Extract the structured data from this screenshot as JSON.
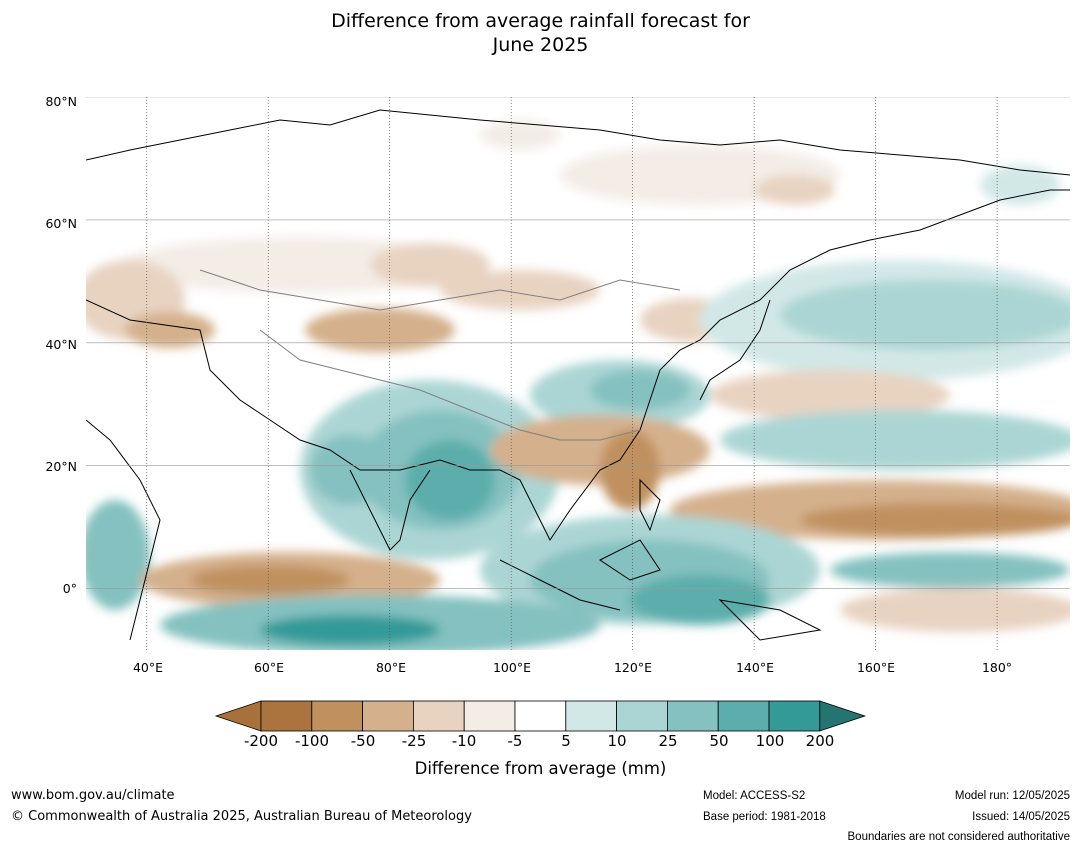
{
  "title": {
    "line1": "Difference from average rainfall forecast for",
    "line2": "June 2025"
  },
  "map": {
    "lat_labels": [
      "80°N",
      "60°N",
      "40°N",
      "20°N",
      "0°"
    ],
    "lon_labels": [
      "40°E",
      "60°E",
      "80°E",
      "100°E",
      "120°E",
      "140°E",
      "160°E",
      "180°"
    ],
    "extent": {
      "lon_min": 30,
      "lon_max": 192,
      "lat_min": -10,
      "lat_max": 80
    }
  },
  "colorbar": {
    "ticks": [
      "-200",
      "-100",
      "-50",
      "-25",
      "-10",
      "-5",
      "5",
      "10",
      "25",
      "50",
      "100",
      "200"
    ],
    "colors": [
      "#a8703a",
      "#ab733d",
      "#c0915e",
      "#d4b08c",
      "#e8d3c1",
      "#f3ede6",
      "#ffffff",
      "#d2e8e7",
      "#abd5d4",
      "#84c1c0",
      "#5caeac",
      "#339a98",
      "#247472"
    ],
    "label": "Difference from average (mm)"
  },
  "footer": {
    "website": "www.bom.gov.au/climate",
    "copyright": "© Commonwealth of Australia 2025, Australian Bureau of Meteorology",
    "model": "Model: ACCESS-S2",
    "base_period": "Base period: 1981-2018",
    "model_run": "Model run: 12/05/2025",
    "issued": "Issued: 14/05/2025",
    "disclaimer": "Boundaries are not considered authoritative"
  }
}
